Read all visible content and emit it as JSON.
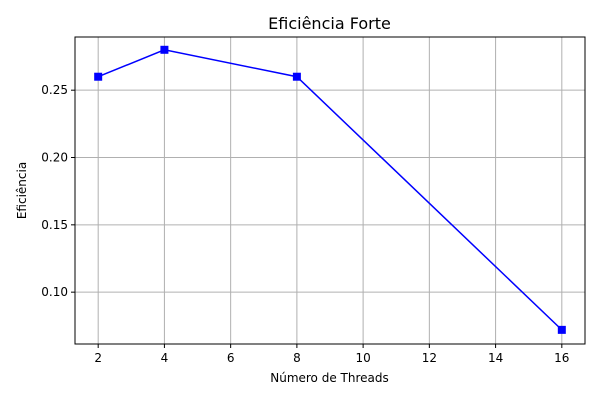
{
  "chart_data": {
    "type": "line",
    "title": "Eficiência Forte",
    "xlabel": "Número de Threads",
    "ylabel": "Eficiência",
    "x": [
      2,
      4,
      8,
      16
    ],
    "series": [
      {
        "values": [
          0.26,
          0.28,
          0.26,
          0.072
        ],
        "color": "#0000ff",
        "marker": "square"
      }
    ],
    "xlim": [
      1.3,
      16.7
    ],
    "ylim": [
      0.0615,
      0.2895
    ],
    "xticks": [
      2,
      4,
      6,
      8,
      10,
      12,
      14,
      16
    ],
    "yticks": [
      0.1,
      0.15,
      0.2,
      0.25
    ],
    "xtick_labels": [
      "2",
      "4",
      "6",
      "8",
      "10",
      "12",
      "14",
      "16"
    ],
    "ytick_labels": [
      "0.10",
      "0.15",
      "0.20",
      "0.25"
    ],
    "grid": true,
    "grid_color": "#b0b0b0"
  }
}
